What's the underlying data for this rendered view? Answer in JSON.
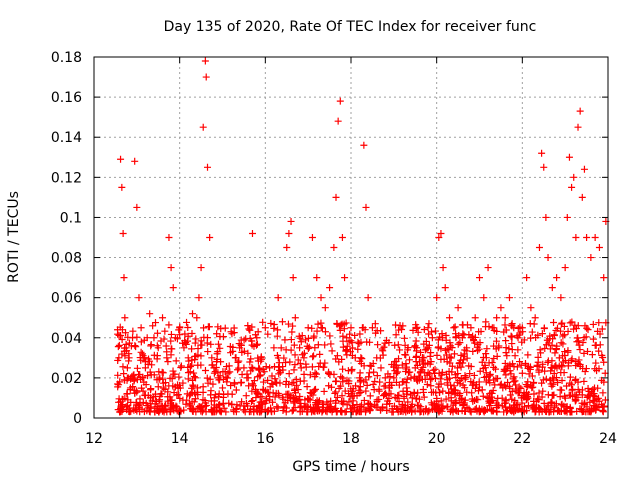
{
  "chart_data": {
    "type": "scatter",
    "title": "Day 135 of 2020, Rate Of TEC Index for receiver func",
    "xlabel": "GPS time / hours",
    "ylabel": "ROTI / TECUs",
    "xlim": [
      12,
      24
    ],
    "ylim": [
      0,
      0.18
    ],
    "x_ticks": [
      "12",
      "14",
      "16",
      "18",
      "20",
      "22",
      "24"
    ],
    "y_ticks": [
      "0",
      "0.02",
      "0.04",
      "0.06",
      "0.08",
      "0.1",
      "0.12",
      "0.14",
      "0.16",
      "0.18"
    ],
    "grid": true,
    "marker": "+",
    "color": "#ff0000",
    "series": [
      {
        "x": [
          12.55,
          12.58,
          12.6,
          12.62,
          12.65,
          12.68,
          12.7,
          12.72,
          12.75,
          12.78,
          12.8,
          12.82,
          12.85,
          12.9,
          12.95,
          13.0,
          13.05,
          13.1,
          13.15,
          13.2,
          13.3,
          13.4,
          13.5,
          13.6,
          13.7,
          13.75,
          13.8,
          13.85,
          13.9,
          14.0,
          14.1,
          14.2,
          14.3,
          14.4,
          14.45,
          14.5,
          14.55,
          14.6,
          14.62,
          14.65,
          14.7,
          14.75,
          14.8,
          14.9,
          15.0,
          15.1,
          15.2,
          15.3,
          15.4,
          15.5,
          15.6,
          15.7,
          15.8,
          15.9,
          16.0,
          16.1,
          16.2,
          16.3,
          16.4,
          16.5,
          16.55,
          16.6,
          16.65,
          16.7,
          16.8,
          16.9,
          17.0,
          17.1,
          17.2,
          17.3,
          17.4,
          17.5,
          17.6,
          17.65,
          17.7,
          17.75,
          17.8,
          17.85,
          17.9,
          18.0,
          18.1,
          18.2,
          18.3,
          18.35,
          18.4,
          18.5,
          18.6,
          18.7,
          18.8,
          18.9,
          19.0,
          19.1,
          19.2,
          19.3,
          19.4,
          19.5,
          19.6,
          19.7,
          19.8,
          19.9,
          20.0,
          20.05,
          20.1,
          20.15,
          20.2,
          20.3,
          20.4,
          20.5,
          20.6,
          20.7,
          20.8,
          20.9,
          21.0,
          21.1,
          21.2,
          21.3,
          21.4,
          21.5,
          21.6,
          21.7,
          21.8,
          21.9,
          22.0,
          22.1,
          22.2,
          22.3,
          22.4,
          22.45,
          22.5,
          22.55,
          22.6,
          22.7,
          22.8,
          22.9,
          23.0,
          23.05,
          23.1,
          23.15,
          23.2,
          23.25,
          23.3,
          23.35,
          23.4,
          23.45,
          23.5,
          23.6,
          23.7,
          23.8,
          23.9,
          23.95
        ],
        "y": [
          0.044,
          0.03,
          0.018,
          0.129,
          0.115,
          0.092,
          0.07,
          0.05,
          0.035,
          0.025,
          0.02,
          0.03,
          0.015,
          0.04,
          0.128,
          0.105,
          0.06,
          0.045,
          0.03,
          0.025,
          0.052,
          0.04,
          0.035,
          0.05,
          0.03,
          0.09,
          0.075,
          0.065,
          0.04,
          0.045,
          0.035,
          0.03,
          0.052,
          0.05,
          0.06,
          0.075,
          0.145,
          0.178,
          0.17,
          0.125,
          0.09,
          0.03,
          0.025,
          0.02,
          0.015,
          0.018,
          0.043,
          0.03,
          0.035,
          0.025,
          0.02,
          0.092,
          0.04,
          0.03,
          0.045,
          0.025,
          0.035,
          0.06,
          0.048,
          0.085,
          0.092,
          0.098,
          0.07,
          0.05,
          0.035,
          0.03,
          0.045,
          0.09,
          0.07,
          0.06,
          0.055,
          0.065,
          0.085,
          0.11,
          0.148,
          0.158,
          0.09,
          0.07,
          0.04,
          0.045,
          0.03,
          0.02,
          0.136,
          0.105,
          0.06,
          0.045,
          0.03,
          0.025,
          0.02,
          0.015,
          0.02,
          0.025,
          0.018,
          0.015,
          0.02,
          0.025,
          0.02,
          0.03,
          0.035,
          0.04,
          0.06,
          0.09,
          0.092,
          0.075,
          0.065,
          0.05,
          0.045,
          0.055,
          0.04,
          0.035,
          0.045,
          0.05,
          0.07,
          0.06,
          0.075,
          0.045,
          0.05,
          0.055,
          0.05,
          0.06,
          0.045,
          0.04,
          0.045,
          0.07,
          0.055,
          0.05,
          0.085,
          0.132,
          0.125,
          0.1,
          0.08,
          0.065,
          0.07,
          0.06,
          0.075,
          0.1,
          0.13,
          0.115,
          0.12,
          0.09,
          0.145,
          0.153,
          0.11,
          0.124,
          0.09,
          0.08,
          0.09,
          0.085,
          0.07,
          0.098
        ]
      }
    ]
  }
}
